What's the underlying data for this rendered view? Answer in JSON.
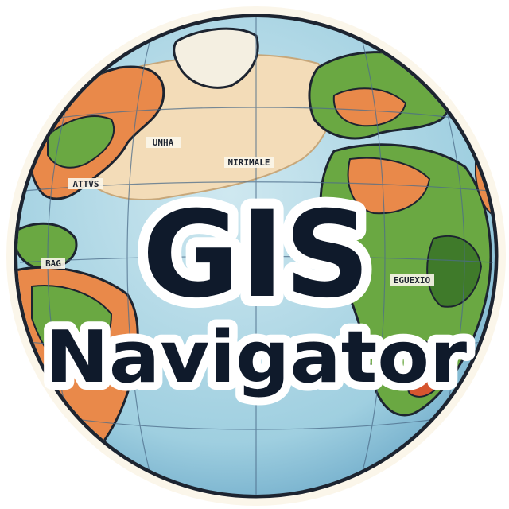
{
  "logo": {
    "title_line_1": "GIS",
    "title_line_2": "Navigator",
    "map_labels": [
      "UNHA",
      "NIRIMALE",
      "ATTVS",
      "BAG",
      "EGUEXIO"
    ]
  },
  "colors": {
    "ocean": "#9fcfe0",
    "ocean_deep": "#6fb0cf",
    "land_sand": "#f3dcb8",
    "land_green": "#6aa842",
    "land_green_dark": "#3f7a2a",
    "land_orange": "#e9894a",
    "land_red": "#d6552f",
    "outline": "#1d2430",
    "text_fill": "#0f1a2b",
    "text_halo": "#ffffff"
  },
  "icons": [
    "globe-icon"
  ]
}
